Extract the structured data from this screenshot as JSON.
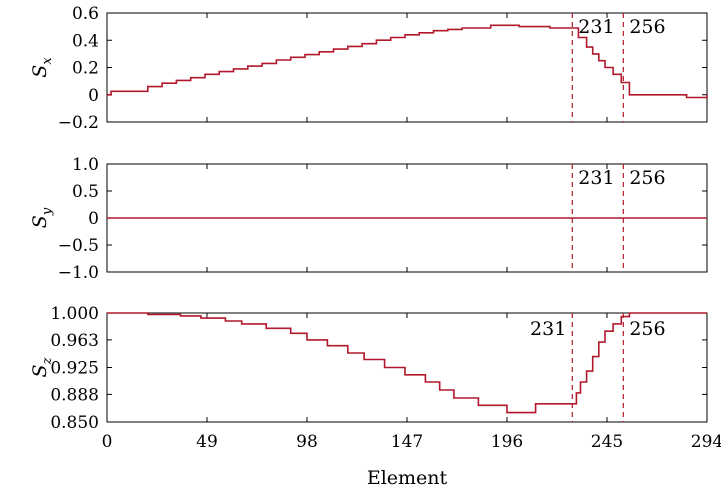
{
  "chart_data": [
    {
      "type": "line",
      "ylabel_main": "S",
      "ylabel_sub": "x",
      "xlim": [
        0,
        294
      ],
      "ylim": [
        -0.2,
        0.6
      ],
      "yticks": [
        -0.2,
        0,
        0.2,
        0.4,
        0.6
      ],
      "ytick_labels": [
        "−0.2",
        "0",
        "0.2",
        "0.4",
        "0.6"
      ],
      "xticks": [
        0,
        49,
        98,
        147,
        196,
        245,
        294
      ],
      "series": [
        {
          "color": "#b2182b",
          "x": [
            0,
            2,
            20,
            27,
            34,
            41,
            48,
            55,
            62,
            69,
            76,
            83,
            90,
            97,
            104,
            111,
            118,
            125,
            132,
            139,
            146,
            153,
            160,
            167,
            174,
            188,
            202,
            217,
            229,
            231,
            235,
            238,
            241,
            244,
            248,
            252,
            256,
            270,
            284,
            294
          ],
          "y": [
            0,
            0.025,
            0.06,
            0.085,
            0.105,
            0.125,
            0.15,
            0.17,
            0.19,
            0.21,
            0.23,
            0.255,
            0.275,
            0.295,
            0.315,
            0.335,
            0.355,
            0.375,
            0.4,
            0.42,
            0.44,
            0.455,
            0.47,
            0.48,
            0.49,
            0.51,
            0.5,
            0.49,
            0.49,
            0.42,
            0.35,
            0.3,
            0.25,
            0.2,
            0.15,
            0.09,
            0.0,
            0.0,
            -0.02,
            0.0
          ],
          "step": true
        }
      ],
      "vlines": [
        {
          "x": 228,
          "label": "231",
          "label_side": "right"
        },
        {
          "x": 253,
          "label": "256",
          "label_side": "right"
        }
      ]
    },
    {
      "type": "line",
      "ylabel_main": "S",
      "ylabel_sub": "y",
      "xlim": [
        0,
        294
      ],
      "ylim": [
        -1.0,
        1.0
      ],
      "yticks": [
        -1.0,
        -0.5,
        0,
        0.5,
        1.0
      ],
      "ytick_labels": [
        "−1.0",
        "−0.5",
        "0",
        "0.5",
        "1.0"
      ],
      "xticks": [
        0,
        49,
        98,
        147,
        196,
        245,
        294
      ],
      "series": [
        {
          "color": "#b2182b",
          "x": [
            0,
            294
          ],
          "y": [
            0,
            0
          ],
          "step": false
        }
      ],
      "vlines": [
        {
          "x": 228,
          "label": "231",
          "label_side": "right"
        },
        {
          "x": 253,
          "label": "256",
          "label_side": "right"
        }
      ]
    },
    {
      "type": "line",
      "ylabel_main": "S",
      "ylabel_sub": "z",
      "xlim": [
        0,
        294
      ],
      "ylim": [
        0.85,
        1.0
      ],
      "yticks": [
        0.85,
        0.888,
        0.925,
        0.963,
        1.0
      ],
      "ytick_labels": [
        "0.850",
        "0.888",
        "0.925",
        "0.963",
        "1.000"
      ],
      "xticks": [
        0,
        49,
        98,
        147,
        196,
        245,
        294
      ],
      "xtick_labels": [
        "0",
        "49",
        "98",
        "147",
        "196",
        "245",
        "294"
      ],
      "xlabel": "Element",
      "series": [
        {
          "color": "#b2182b",
          "x": [
            0,
            20,
            36,
            46,
            58,
            66,
            78,
            90,
            98,
            108,
            118,
            126,
            136,
            146,
            156,
            163,
            170,
            182,
            196,
            200,
            210,
            228,
            230,
            232,
            235,
            238,
            241,
            244,
            248,
            252,
            256,
            270,
            294
          ],
          "y": [
            1.0,
            0.998,
            0.996,
            0.993,
            0.989,
            0.985,
            0.979,
            0.972,
            0.963,
            0.955,
            0.945,
            0.936,
            0.925,
            0.915,
            0.905,
            0.894,
            0.883,
            0.873,
            0.863,
            0.863,
            0.875,
            0.875,
            0.89,
            0.905,
            0.92,
            0.94,
            0.96,
            0.975,
            0.985,
            0.995,
            1.0,
            1.0,
            1.0
          ],
          "step": true
        }
      ],
      "vlines": [
        {
          "x": 228,
          "label": "231",
          "label_side": "left"
        },
        {
          "x": 253,
          "label": "256",
          "label_side": "right"
        }
      ]
    }
  ]
}
